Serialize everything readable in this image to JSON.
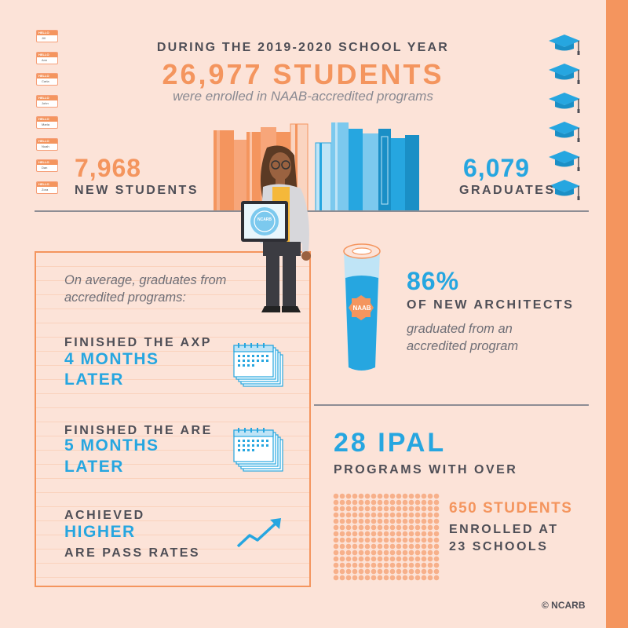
{
  "header": {
    "kicker": "DURING THE 2019-2020 SCHOOL YEAR",
    "headline": "26,977 STUDENTS",
    "subline": "were enrolled in NAAB-accredited programs"
  },
  "new_students": {
    "value": "7,968",
    "label": "NEW STUDENTS"
  },
  "graduates": {
    "value": "6,079",
    "label": "GRADUATES"
  },
  "name_tags": [
    "Jill",
    "Ann",
    "Carla",
    "John",
    "Maria",
    "Noah",
    "Dan",
    "Zora"
  ],
  "tag_header": "HELLO",
  "panel": {
    "intro": "On average, graduates from accredited programs:",
    "axp": {
      "line1": "FINISHED THE AXP",
      "line2": "4 MONTHS",
      "line3": "LATER"
    },
    "are": {
      "line1": "FINISHED THE ARE",
      "line2": "5 MONTHS",
      "line3": "LATER"
    },
    "pass": {
      "line1": "ACHIEVED",
      "line2": "HIGHER",
      "line3": "ARE PASS RATES"
    }
  },
  "architects": {
    "percent": "86%",
    "label": "OF NEW ARCHITECTS",
    "sub": "graduated from an accredited program",
    "seal_text": "NAAB"
  },
  "laptop_text": "NCARB",
  "ipal": {
    "headline": "28 IPAL",
    "label": "PROGRAMS WITH OVER",
    "students": "650 STUDENTS",
    "enrolled_line1": "ENROLLED AT",
    "enrolled_line2": "23 SCHOOLS"
  },
  "credit": "© NCARB",
  "colors": {
    "orange": "#f4955e",
    "blue": "#26a6e0",
    "dark": "#4e4e56",
    "background": "#fce3d8"
  }
}
